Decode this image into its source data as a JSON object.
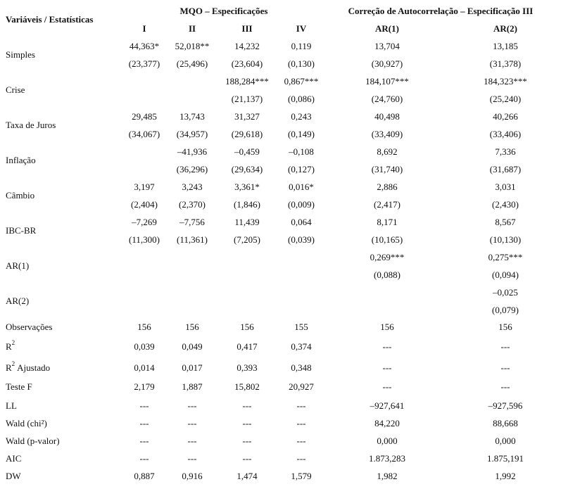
{
  "header": {
    "row_label": "Variáveis / Estatísticas",
    "groups": [
      "MQO – Especificações",
      "Correção de Autocorrelação – Especificação III"
    ],
    "columns": [
      "I",
      "II",
      "III",
      "IV",
      "AR(1)",
      "AR(2)"
    ]
  },
  "coef_rows": [
    {
      "label": "Simples",
      "values": [
        "44,363*",
        "52,018**",
        "14,232",
        "0,119",
        "13,704",
        "13,185"
      ],
      "se": [
        "(23,377)",
        "(25,496)",
        "(23,604)",
        "(0,130)",
        "(30,927)",
        "(31,378)"
      ]
    },
    {
      "label": "Crise",
      "values": [
        null,
        null,
        "188,284***",
        "0,867***",
        "184,107***",
        "184,323***"
      ],
      "se": [
        null,
        null,
        "(21,137)",
        "(0,086)",
        "(24,760)",
        "(25,240)"
      ]
    },
    {
      "label": "Taxa de Juros",
      "values": [
        "29,485",
        "13,743",
        "31,327",
        "0,243",
        "40,498",
        "40,266"
      ],
      "se": [
        "(34,067)",
        "(34,957)",
        "(29,618)",
        "(0,149)",
        "(33,409)",
        "(33,406)"
      ]
    },
    {
      "label": "Inflação",
      "values": [
        null,
        "–41,936",
        "–0,459",
        "–0,108",
        "8,692",
        "7,336"
      ],
      "se": [
        null,
        "(36,296)",
        "(29,634)",
        "(0,127)",
        "(31,740)",
        "(31,687)"
      ]
    },
    {
      "label": "Câmbio",
      "values": [
        "3,197",
        "3,243",
        "3,361*",
        "0,016*",
        "2,886",
        "3,031"
      ],
      "se": [
        "(2,404)",
        "(2,370)",
        "(1,846)",
        "(0,009)",
        "(2,417)",
        "(2,430)"
      ]
    },
    {
      "label": "IBC-BR",
      "values": [
        "–7,269",
        "–7,756",
        "11,439",
        "0,064",
        "8,171",
        "8,567"
      ],
      "se": [
        "(11,300)",
        "(11,361)",
        "(7,205)",
        "(0,039)",
        "(10,165)",
        "(10,130)"
      ]
    },
    {
      "label": "AR(1)",
      "values": [
        null,
        null,
        null,
        null,
        "0,269***",
        "0,275***"
      ],
      "se": [
        null,
        null,
        null,
        null,
        "(0,088)",
        "(0,094)"
      ]
    },
    {
      "label": "AR(2)",
      "values": [
        null,
        null,
        null,
        null,
        null,
        "–0,025"
      ],
      "se": [
        null,
        null,
        null,
        null,
        null,
        "(0,079)"
      ]
    }
  ],
  "stat_rows": [
    {
      "label": "Observações",
      "values": [
        "156",
        "156",
        "156",
        "155",
        "156",
        "156"
      ]
    },
    {
      "label": "R",
      "sup": "2",
      "values": [
        "0,039",
        "0,049",
        "0,417",
        "0,374",
        "---",
        "---"
      ]
    },
    {
      "label": "R",
      "sup": "2",
      "suffix": "Ajustado",
      "values": [
        "0,014",
        "0,017",
        "0,393",
        "0,348",
        "---",
        "---"
      ]
    },
    {
      "label": "Teste F",
      "values": [
        "2,179",
        "1,887",
        "15,802",
        "20,927",
        "---",
        "---"
      ]
    },
    {
      "label": "LL",
      "values": [
        "---",
        "---",
        "---",
        "---",
        "–927,641",
        "–927,596"
      ]
    },
    {
      "label": "Wald (chi²)",
      "values": [
        "---",
        "---",
        "---",
        "---",
        "84,220",
        "88,668"
      ]
    },
    {
      "label": "Wald (p-valor)",
      "values": [
        "---",
        "---",
        "---",
        "---",
        "0,000",
        "0,000"
      ]
    },
    {
      "label": "AIC",
      "values": [
        "---",
        "---",
        "---",
        "---",
        "1.873,283",
        "1.875,191"
      ]
    },
    {
      "label": "DW",
      "values": [
        "0,887",
        "0,916",
        "1,474",
        "1,579",
        "1,982",
        "1,992"
      ]
    }
  ]
}
